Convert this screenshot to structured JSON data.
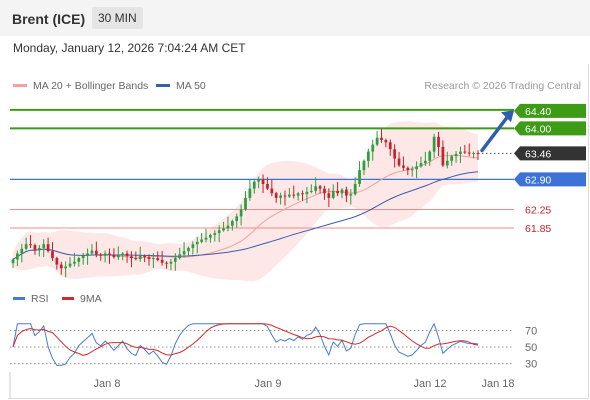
{
  "header": {
    "title": "Brent (ICE)",
    "timeframe": "30 MIN",
    "datetime": "Monday, January 12, 2026 7:04:24 AM CET"
  },
  "credit": "Research © 2026 Trading Central",
  "colors": {
    "bullish": "#2c9e3f",
    "bearish": "#c8202a",
    "band_fill": "#fde4e4",
    "ma20": "#f2a0a0",
    "ma50": "#3a5fa8",
    "resistance": "#3e9b16",
    "pivot": "#3d73d6",
    "support": "#ee8b8b",
    "rsi": "#4a7bd0",
    "rsi_ma": "#d42a2a",
    "last_price_bg": "#333333"
  },
  "chart_data": [
    {
      "type": "candlestick",
      "legend": [
        {
          "label": "MA 20 + Bollinger Bands",
          "color": "#f2a0a0"
        },
        {
          "label": "MA 50",
          "color": "#3a5fa8"
        }
      ],
      "x_labels": [
        "Jan 8",
        "Jan 9",
        "Jan 12",
        "Jan 18"
      ],
      "ylim": [
        60.9,
        64.7
      ],
      "last_price": 63.46,
      "levels": [
        {
          "value": 64.4,
          "label": "64.40",
          "kind": "resistance"
        },
        {
          "value": 64.0,
          "label": "64.00",
          "kind": "resistance"
        },
        {
          "value": 63.46,
          "label": "63.46",
          "kind": "last"
        },
        {
          "value": 62.9,
          "label": "62.90",
          "kind": "pivot"
        },
        {
          "value": 62.25,
          "label": "62.25",
          "kind": "support"
        },
        {
          "value": 61.85,
          "label": "61.85",
          "kind": "support"
        }
      ],
      "close": [
        61.17,
        61.3,
        61.4,
        61.5,
        61.48,
        61.38,
        61.42,
        61.5,
        61.35,
        61.2,
        61.06,
        60.98,
        61.02,
        61.08,
        61.12,
        61.2,
        61.25,
        61.3,
        61.36,
        61.28,
        61.25,
        61.3,
        61.27,
        61.22,
        61.26,
        61.3,
        61.24,
        61.2,
        61.18,
        61.25,
        61.22,
        61.18,
        61.2,
        61.16,
        61.1,
        61.08,
        61.12,
        61.2,
        61.28,
        61.35,
        61.42,
        61.5,
        61.55,
        61.6,
        61.64,
        61.7,
        61.74,
        61.8,
        61.84,
        61.9,
        62.0,
        62.1,
        62.25,
        62.5,
        62.7,
        62.85,
        62.9,
        62.8,
        62.7,
        62.6,
        62.5,
        62.55,
        62.53,
        62.57,
        62.55,
        62.6,
        62.58,
        62.63,
        62.65,
        62.75,
        62.7,
        62.6,
        62.5,
        62.65,
        62.6,
        62.68,
        62.55,
        62.58,
        62.8,
        63.1,
        63.3,
        63.5,
        63.65,
        63.8,
        63.75,
        63.7,
        63.55,
        63.35,
        63.2,
        63.15,
        63.1,
        63.12,
        63.18,
        63.25,
        63.3,
        63.5,
        63.82,
        63.6,
        63.2,
        63.3,
        63.4,
        63.45,
        63.5,
        63.48,
        63.46,
        63.47,
        63.46
      ],
      "volatility": [
        0.03,
        0.12,
        0.25,
        0.35,
        0.5
      ],
      "extremes": {
        "high": 63.82,
        "low": 60.98
      },
      "rsi": {
        "legend": [
          {
            "label": "RSI",
            "color": "#4a7bd0"
          },
          {
            "label": "9MA",
            "color": "#d42a2a"
          }
        ],
        "levels": [
          "70",
          "50",
          "30"
        ],
        "ylim": [
          20,
          85
        ]
      }
    }
  ]
}
